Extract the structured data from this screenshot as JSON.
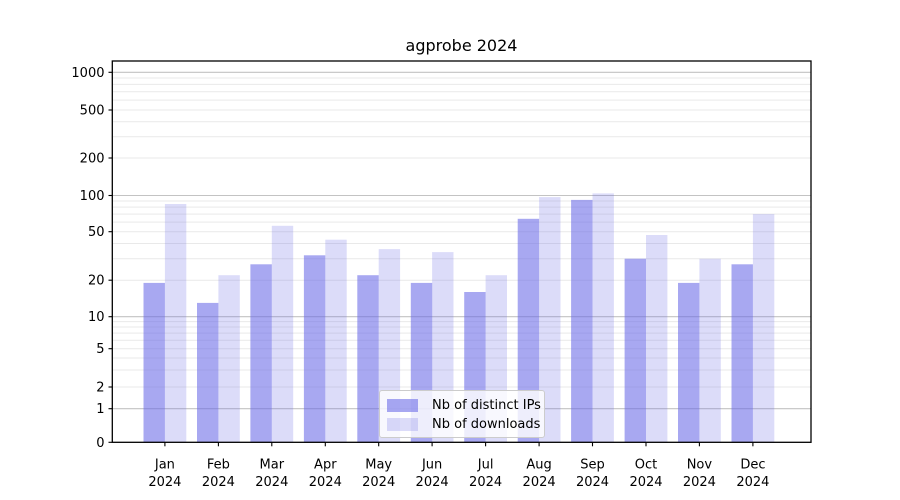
{
  "chart_data": {
    "type": "bar",
    "title": "agprobe 2024",
    "categories": [
      "Jan",
      "Feb",
      "Mar",
      "Apr",
      "May",
      "Jun",
      "Jul",
      "Aug",
      "Sep",
      "Oct",
      "Nov",
      "Dec"
    ],
    "x_tick_year": "2024",
    "series": [
      {
        "name": "Nb of distinct IPs",
        "color": "rgba(102,102,230,0.57)",
        "values": [
          19,
          13,
          27,
          32,
          22,
          19,
          16,
          64,
          92,
          30,
          19,
          27
        ]
      },
      {
        "name": "Nb of downloads",
        "color": "rgba(102,102,230,0.23)",
        "values": [
          85,
          22,
          56,
          43,
          36,
          34,
          22,
          97,
          104,
          47,
          30,
          70
        ]
      }
    ],
    "y_axis": {
      "scale": "symlog",
      "ticks": [
        0,
        1,
        2,
        5,
        10,
        20,
        50,
        100,
        200,
        500,
        1000
      ],
      "major_gridlines": [
        1,
        10,
        100,
        1000
      ],
      "minor_gridlines": [
        2,
        3,
        4,
        5,
        6,
        7,
        8,
        9,
        20,
        30,
        40,
        50,
        60,
        70,
        80,
        90,
        200,
        300,
        400,
        500,
        600,
        700,
        800,
        900
      ]
    },
    "legend_entries": [
      "Nb of distinct IPs",
      "Nb of downloads"
    ],
    "colors": {
      "bar_base": "#6666e6",
      "major_grid": "#c3c3c3",
      "minor_grid": "#e9e9e9",
      "axis": "#000000"
    }
  }
}
